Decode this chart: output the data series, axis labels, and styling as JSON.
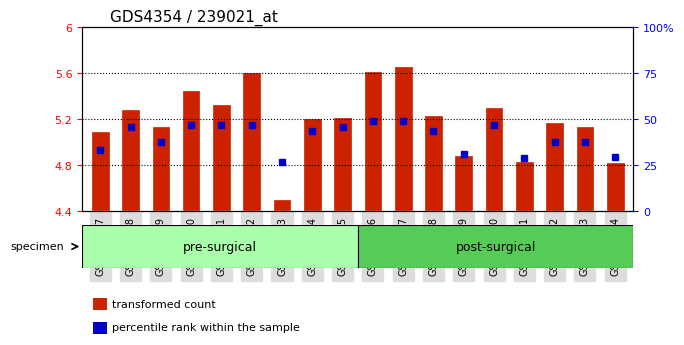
{
  "title": "GDS4354 / 239021_at",
  "categories": [
    "GSM746837",
    "GSM746838",
    "GSM746839",
    "GSM746840",
    "GSM746841",
    "GSM746842",
    "GSM746843",
    "GSM746844",
    "GSM746845",
    "GSM746846",
    "GSM746847",
    "GSM746848",
    "GSM746849",
    "GSM746850",
    "GSM746851",
    "GSM746852",
    "GSM746853",
    "GSM746854"
  ],
  "bar_values": [
    5.09,
    5.28,
    5.13,
    5.44,
    5.32,
    5.6,
    4.5,
    5.2,
    5.21,
    5.61,
    5.65,
    5.23,
    4.88,
    5.3,
    4.83,
    5.17,
    5.13,
    4.82
  ],
  "blue_dot_values": [
    4.93,
    5.13,
    5.0,
    5.15,
    5.15,
    5.15,
    4.83,
    5.1,
    5.13,
    5.18,
    5.18,
    5.1,
    4.9,
    5.15,
    4.86,
    5.0,
    5.0,
    4.87
  ],
  "bar_bottom": 4.4,
  "ylim_left": [
    4.4,
    6.0
  ],
  "ylim_right": [
    0,
    100
  ],
  "yticks_left": [
    4.4,
    4.8,
    5.2,
    5.6,
    6.0
  ],
  "ytick_labels_left": [
    "4.4",
    "4.8",
    "5.2",
    "5.6",
    "6"
  ],
  "yticks_right": [
    0,
    25,
    50,
    75,
    100
  ],
  "ytick_labels_right": [
    "0",
    "25",
    "50",
    "75",
    "100%"
  ],
  "bar_color": "#CC2200",
  "dot_color": "#0000CC",
  "grid_values": [
    4.8,
    5.2,
    5.6
  ],
  "groups": [
    {
      "label": "pre-surgical",
      "start": 0,
      "end": 9,
      "color": "#AAFFAA"
    },
    {
      "label": "post-surgical",
      "start": 9,
      "end": 18,
      "color": "#55CC55"
    }
  ],
  "specimen_label": "specimen",
  "legend": [
    {
      "label": "transformed count",
      "color": "#CC2200",
      "marker": "s"
    },
    {
      "label": "percentile rank within the sample",
      "color": "#0000CC",
      "marker": "s"
    }
  ],
  "title_fontsize": 11,
  "tick_label_fontsize": 7.5,
  "group_label_fontsize": 9
}
